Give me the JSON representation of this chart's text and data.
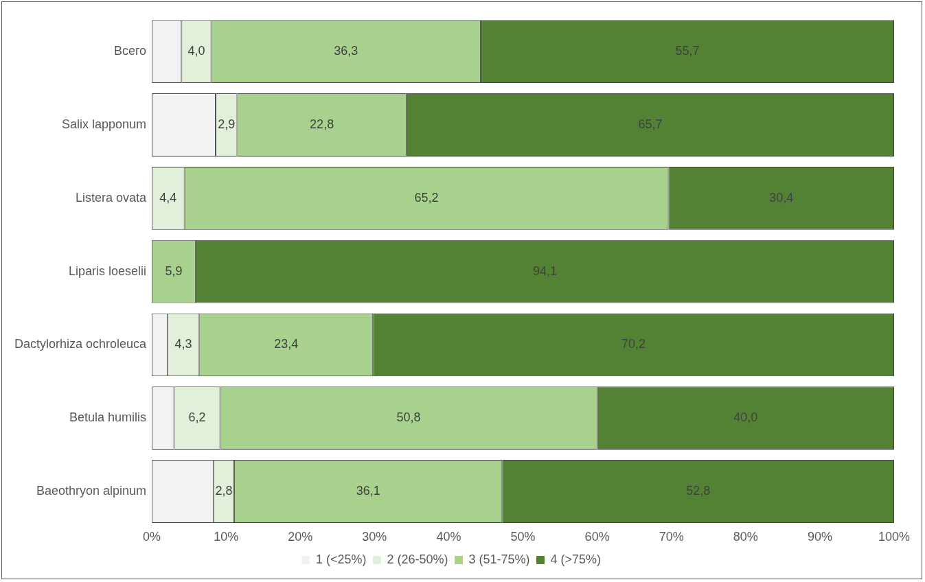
{
  "chart_data": {
    "type": "bar",
    "orientation": "horizontal",
    "stacked": true,
    "categories": [
      "Всего",
      "Salix lapponum",
      "Listera ovata",
      "Liparis loeselii",
      "Dactylorhiza ochroleuca",
      "Betula humilis",
      "Baeothryon alpinum"
    ],
    "series": [
      {
        "name": "1 (<25%)",
        "color": "#f2f2f2",
        "values": [
          4.0,
          8.6,
          0,
          0,
          2.1,
          3.0,
          8.3
        ],
        "value_labels": [
          null,
          null,
          null,
          null,
          null,
          null,
          null
        ]
      },
      {
        "name": "2 (26-50%)",
        "color": "#e2f0d9",
        "values": [
          4.0,
          2.9,
          4.4,
          0,
          4.3,
          6.2,
          2.8
        ],
        "value_labels": [
          "4,0",
          "2,9",
          "4,4",
          null,
          "4,3",
          "6,2",
          "2,8"
        ]
      },
      {
        "name": "3 (51-75%)",
        "color": "#a9d18e",
        "values": [
          36.3,
          22.8,
          65.2,
          5.9,
          23.4,
          50.8,
          36.1
        ],
        "value_labels": [
          "36,3",
          "22,8",
          "65,2",
          "5,9",
          "23,4",
          "50,8",
          "36,1"
        ]
      },
      {
        "name": "4 (>75%)",
        "color": "#548235",
        "values": [
          55.7,
          65.7,
          30.4,
          94.1,
          70.2,
          40.0,
          52.8
        ],
        "value_labels": [
          "55,7",
          "65,7",
          "30,4",
          "94,1",
          "70,2",
          "40,0",
          "52,8"
        ]
      }
    ],
    "xlim": [
      0,
      100
    ],
    "xticks": [
      {
        "value": 0,
        "label": "0%"
      },
      {
        "value": 10,
        "label": "10%"
      },
      {
        "value": 20,
        "label": "20%"
      },
      {
        "value": 30,
        "label": "30%"
      },
      {
        "value": 40,
        "label": "40%"
      },
      {
        "value": 50,
        "label": "50%"
      },
      {
        "value": 60,
        "label": "60%"
      },
      {
        "value": 70,
        "label": "70%"
      },
      {
        "value": 80,
        "label": "80%"
      },
      {
        "value": 90,
        "label": "90%"
      },
      {
        "value": 100,
        "label": "100%"
      }
    ],
    "grid": false,
    "legend": "bottom"
  }
}
